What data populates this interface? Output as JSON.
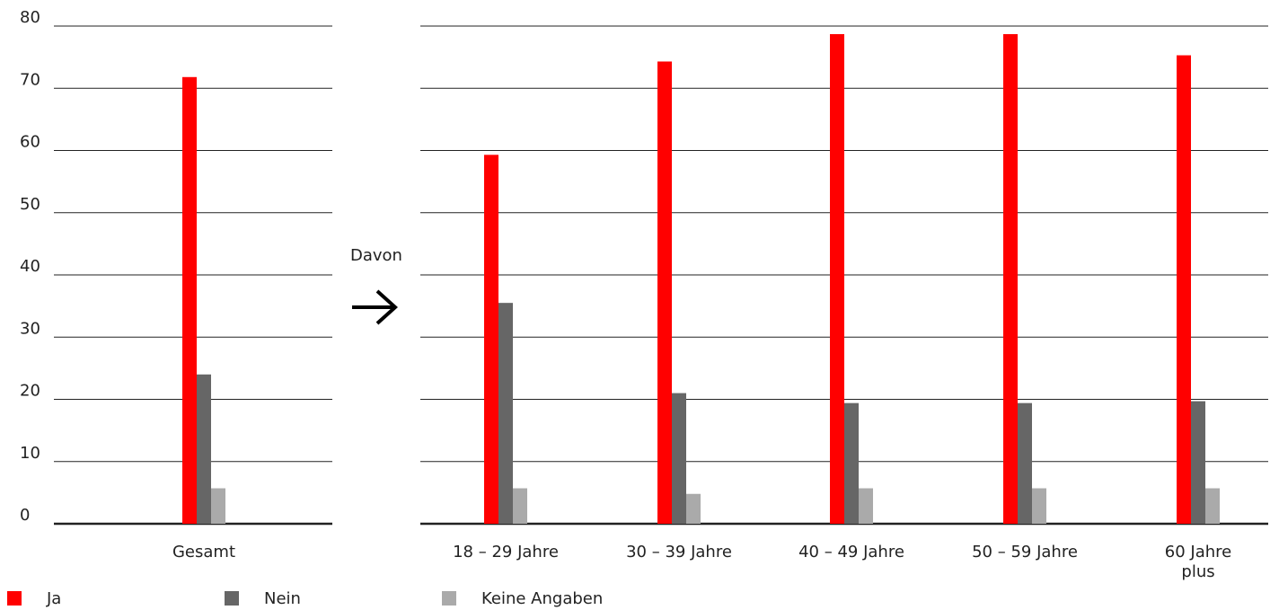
{
  "chart_data": {
    "type": "bar",
    "ylim": [
      0,
      80
    ],
    "yticks": [
      0,
      10,
      20,
      30,
      40,
      50,
      60,
      70,
      80
    ],
    "grid": true,
    "legend_position": "bottom",
    "panels": [
      {
        "categories": [
          "Gesamt"
        ],
        "series": [
          {
            "name": "Ja",
            "color": "#ff0000",
            "values": [
              71.8
            ]
          },
          {
            "name": "Nein",
            "color": "#666666",
            "values": [
              24
            ]
          },
          {
            "name": "Keine Angaben",
            "color": "#aaaaaa",
            "values": [
              5.7
            ]
          }
        ]
      },
      {
        "categories": [
          "18 – 29 Jahre",
          "30 – 39 Jahre",
          "40 – 49 Jahre",
          "50 – 59 Jahre",
          "60 Jahre plus"
        ],
        "series": [
          {
            "name": "Ja",
            "color": "#ff0000",
            "values": [
              59.3,
              74.3,
              78.7,
              78.7,
              75.3
            ]
          },
          {
            "name": "Nein",
            "color": "#666666",
            "values": [
              35.5,
              21,
              19.4,
              19.4,
              19.7
            ]
          },
          {
            "name": "Keine Angaben",
            "color": "#aaaaaa",
            "values": [
              5.7,
              4.8,
              5.7,
              5.7,
              5.7
            ]
          }
        ]
      }
    ],
    "annotations": [
      "Davon"
    ]
  },
  "legend": [
    {
      "label": "Ja",
      "color": "#ff0000"
    },
    {
      "label": "Nein",
      "color": "#666666"
    },
    {
      "label": "Keine Angaben",
      "color": "#aaaaaa"
    }
  ],
  "connector": {
    "label": "Davon",
    "icon": "arrow-right-icon"
  }
}
